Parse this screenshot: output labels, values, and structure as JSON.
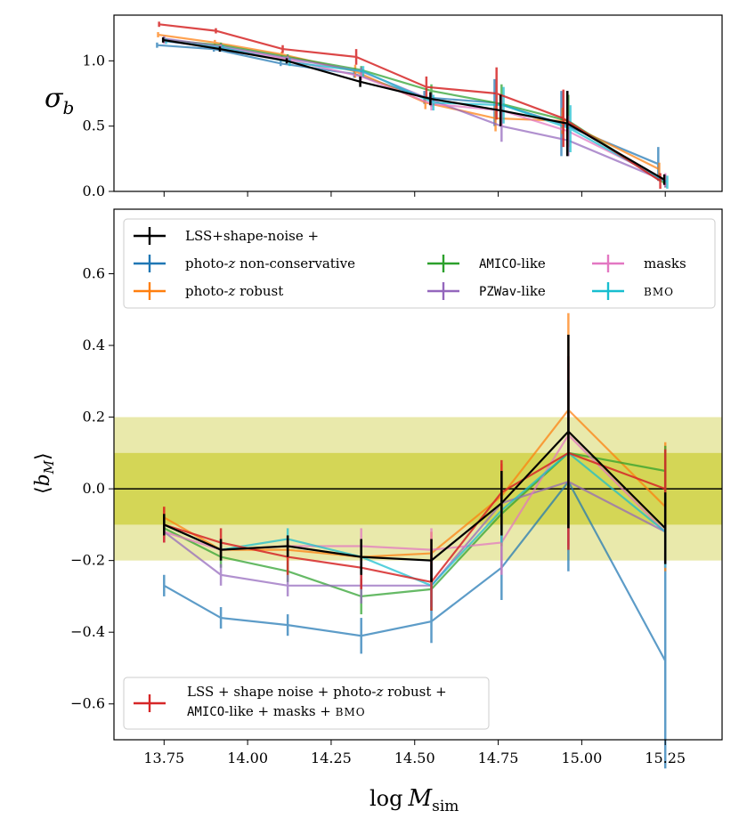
{
  "colors": {
    "black": "#000000",
    "blue": "#1f77b4",
    "orange": "#ff7f0e",
    "green": "#2ca02c",
    "purple": "#9467bd",
    "pink": "#e377c2",
    "cyan": "#17becf",
    "red": "#d62728",
    "band_outer": "#e9e9ab",
    "band_inner": "#d4d656"
  },
  "chart_data": [
    {
      "type": "line",
      "title": "",
      "ylabel": "σ_b",
      "ylim": [
        0.0,
        1.35
      ],
      "xlim": [
        13.6,
        15.42
      ],
      "yticks": [
        {
          "v": 0.0,
          "label": "0.0"
        },
        {
          "v": 0.5,
          "label": "0.5"
        },
        {
          "v": 1.0,
          "label": "1.0"
        }
      ],
      "x": [
        13.75,
        13.92,
        14.12,
        14.34,
        14.55,
        14.76,
        14.96,
        15.25
      ],
      "series": [
        {
          "name": "photo-z non-conservative",
          "key": "blue",
          "dx": -0.07,
          "values": [
            1.12,
            1.09,
            0.98,
            0.9,
            0.72,
            0.68,
            0.52,
            0.21
          ],
          "err": [
            0.02,
            0.02,
            0.02,
            0.03,
            0.05,
            0.18,
            0.25,
            0.13
          ]
        },
        {
          "name": "photo-z robust",
          "key": "orange",
          "dx": -0.06,
          "values": [
            1.2,
            1.14,
            1.05,
            0.92,
            0.68,
            0.56,
            0.54,
            0.17
          ],
          "err": [
            0.02,
            0.02,
            0.02,
            0.05,
            0.05,
            0.1,
            0.1,
            0.05
          ]
        },
        {
          "name": "AMICO-like",
          "key": "green",
          "dx": 0.0,
          "values": [
            1.16,
            1.12,
            1.03,
            0.93,
            0.77,
            0.67,
            0.54,
            0.06
          ],
          "err": [
            0.02,
            0.02,
            0.02,
            0.03,
            0.05,
            0.15,
            0.2,
            0.03
          ]
        },
        {
          "name": "PZWav-like",
          "key": "purple",
          "dx": 0.0,
          "values": [
            1.17,
            1.11,
            1.02,
            0.92,
            0.7,
            0.5,
            0.39,
            0.08
          ],
          "err": [
            0.02,
            0.02,
            0.02,
            0.03,
            0.05,
            0.12,
            0.12,
            0.05
          ]
        },
        {
          "name": "masks",
          "key": "pink",
          "dx": 0.0,
          "values": [
            1.15,
            1.1,
            1.01,
            0.88,
            0.67,
            0.62,
            0.46,
            0.09
          ],
          "err": [
            0.02,
            0.02,
            0.02,
            0.03,
            0.05,
            0.12,
            0.12,
            0.05
          ]
        },
        {
          "name": "BMO",
          "key": "cyan",
          "dx": 0.02,
          "values": [
            1.15,
            1.1,
            0.99,
            0.92,
            0.68,
            0.66,
            0.48,
            0.07
          ],
          "err": [
            0.02,
            0.02,
            0.03,
            0.04,
            0.06,
            0.14,
            0.18,
            0.05
          ]
        },
        {
          "name": "LSS + shape noise + photo-z robust + AMICO-like + masks + BMO",
          "key": "red",
          "dx": -0.05,
          "values": [
            1.28,
            1.23,
            1.09,
            1.03,
            0.8,
            0.75,
            0.56,
            0.08
          ],
          "err": [
            0.02,
            0.02,
            0.03,
            0.06,
            0.08,
            0.2,
            0.22,
            0.06
          ]
        },
        {
          "name": "LSS+shape-noise",
          "key": "black",
          "dx": -0.01,
          "values": [
            1.16,
            1.09,
            1.0,
            0.84,
            0.71,
            0.62,
            0.52,
            0.09
          ],
          "err": [
            0.02,
            0.02,
            0.02,
            0.04,
            0.05,
            0.12,
            0.25,
            0.04
          ]
        }
      ]
    },
    {
      "type": "line",
      "title": "",
      "ylabel": "⟨b_M⟩",
      "xlabel": "log M_sim",
      "ylim": [
        -0.7,
        0.78
      ],
      "xlim": [
        13.6,
        15.42
      ],
      "bands": [
        {
          "from": -0.2,
          "to": 0.2,
          "key": "band_outer"
        },
        {
          "from": -0.1,
          "to": 0.1,
          "key": "band_inner"
        }
      ],
      "hline": 0.0,
      "xticks": [
        {
          "v": 13.75,
          "label": "13.75"
        },
        {
          "v": 14.0,
          "label": "14.00"
        },
        {
          "v": 14.25,
          "label": "14.25"
        },
        {
          "v": 14.5,
          "label": "14.50"
        },
        {
          "v": 14.75,
          "label": "14.75"
        },
        {
          "v": 15.0,
          "label": "15.00"
        },
        {
          "v": 15.25,
          "label": "15.25"
        }
      ],
      "yticks": [
        {
          "v": -0.6,
          "label": "−0.6"
        },
        {
          "v": -0.4,
          "label": "−0.4"
        },
        {
          "v": -0.2,
          "label": "−0.2"
        },
        {
          "v": 0.0,
          "label": "0.0"
        },
        {
          "v": 0.2,
          "label": "0.2"
        },
        {
          "v": 0.4,
          "label": "0.4"
        },
        {
          "v": 0.6,
          "label": "0.6"
        }
      ],
      "x": [
        13.75,
        13.92,
        14.12,
        14.34,
        14.55,
        14.76,
        14.96,
        15.25
      ],
      "series": [
        {
          "name": "photo-z non-conservative",
          "key": "blue",
          "values": [
            -0.27,
            -0.36,
            -0.38,
            -0.41,
            -0.37,
            -0.22,
            0.02,
            -0.48
          ],
          "err": [
            0.03,
            0.03,
            0.03,
            0.05,
            0.06,
            0.09,
            0.25,
            0.3
          ]
        },
        {
          "name": "photo-z robust",
          "key": "orange",
          "values": [
            -0.08,
            -0.17,
            -0.17,
            -0.19,
            -0.18,
            -0.02,
            0.22,
            -0.05
          ],
          "err": [
            0.03,
            0.03,
            0.03,
            0.05,
            0.06,
            0.09,
            0.27,
            0.18
          ]
        },
        {
          "name": "AMICO-like",
          "key": "green",
          "values": [
            -0.11,
            -0.19,
            -0.23,
            -0.3,
            -0.28,
            -0.07,
            0.1,
            0.05
          ],
          "err": [
            0.03,
            0.03,
            0.03,
            0.05,
            0.06,
            0.09,
            0.2,
            0.07
          ]
        },
        {
          "name": "PZWav-like",
          "key": "purple",
          "values": [
            -0.12,
            -0.24,
            -0.27,
            -0.27,
            -0.27,
            -0.04,
            0.02,
            -0.12
          ],
          "err": [
            0.03,
            0.03,
            0.03,
            0.05,
            0.06,
            0.09,
            0.18,
            0.1
          ]
        },
        {
          "name": "masks",
          "key": "pink",
          "values": [
            -0.12,
            -0.17,
            -0.16,
            -0.16,
            -0.17,
            -0.15,
            0.15,
            -0.12
          ],
          "err": [
            0.03,
            0.03,
            0.03,
            0.05,
            0.06,
            0.09,
            0.2,
            0.1
          ]
        },
        {
          "name": "BMO",
          "key": "cyan",
          "values": [
            -0.1,
            -0.17,
            -0.14,
            -0.19,
            -0.27,
            -0.06,
            0.1,
            -0.12
          ],
          "err": [
            0.03,
            0.03,
            0.03,
            0.05,
            0.06,
            0.09,
            0.2,
            0.1
          ]
        },
        {
          "name": "LSS + shape noise + photo-z robust + AMICO-like + masks + BMO",
          "key": "red",
          "values": [
            -0.1,
            -0.15,
            -0.19,
            -0.22,
            -0.26,
            -0.01,
            0.1,
            0.0
          ],
          "err": [
            0.05,
            0.04,
            0.05,
            0.06,
            0.08,
            0.09,
            0.27,
            0.11
          ]
        },
        {
          "name": "LSS+shape-noise",
          "key": "black",
          "values": [
            -0.1,
            -0.17,
            -0.16,
            -0.19,
            -0.2,
            -0.04,
            0.16,
            -0.11
          ],
          "err": [
            0.03,
            0.03,
            0.03,
            0.05,
            0.06,
            0.09,
            0.27,
            0.1
          ]
        }
      ]
    }
  ],
  "legend_top": [
    {
      "key": "black",
      "text": "LSS+shape-noise +"
    },
    {
      "key": "blue",
      "text": "photo-",
      "ital": "z",
      "tail": " non-conservative"
    },
    {
      "key": "orange",
      "text": "photo-",
      "ital": "z",
      "tail": " robust"
    },
    {
      "key": "green",
      "mono": "AMICO",
      "tail": "-like"
    },
    {
      "key": "purple",
      "mono": "PZWav",
      "tail": "-like"
    },
    {
      "key": "pink",
      "text": "masks"
    },
    {
      "key": "cyan",
      "text": "BMO"
    }
  ],
  "legend_bottom": {
    "key": "red",
    "line1_a": "LSS + shape noise + photo-",
    "line1_i": "z",
    "line1_b": " robust +",
    "line2_mono": "AMICO",
    "line2_b": "-like + masks + ",
    "line2_sc": "BMO"
  },
  "labels": {
    "top_ylabel": "σ",
    "top_ylabel_sub": "b",
    "bot_ylabel_l": "⟨",
    "bot_ylabel_b": "b",
    "bot_ylabel_sub": "M",
    "bot_ylabel_r": "⟩",
    "xlabel_log": "log",
    "xlabel_M": "M",
    "xlabel_sub": "sim"
  }
}
